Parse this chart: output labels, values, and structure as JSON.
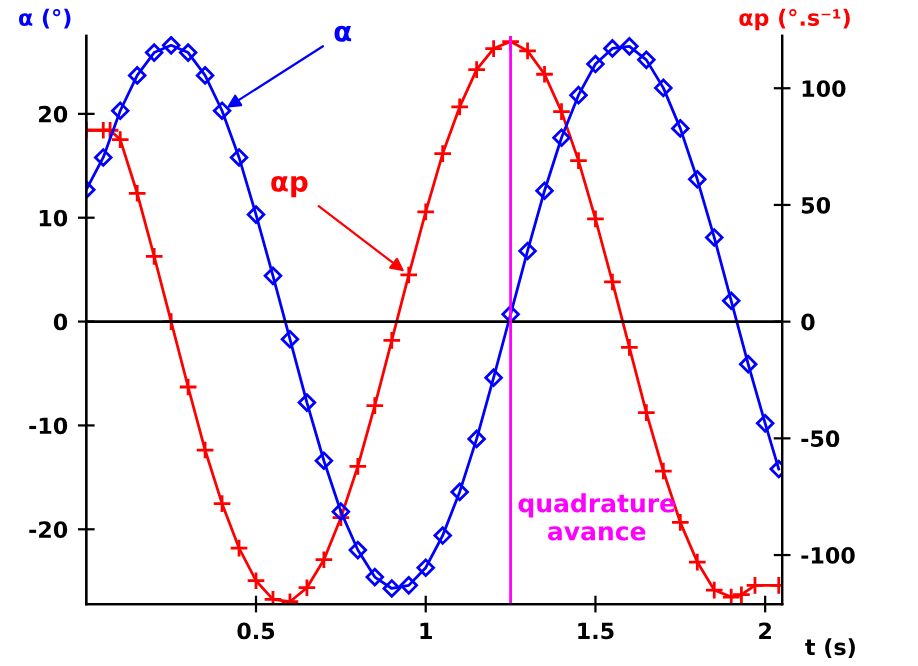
{
  "chart_data": {
    "type": "line",
    "xlabel": "t (s)",
    "ylabel": "α (°)",
    "y2label": "αp (°.s⁻¹)",
    "xlim": [
      0,
      2.05
    ],
    "xticks": [
      0.5,
      1,
      1.5,
      2
    ],
    "ylim": [
      -27.2,
      27.5
    ],
    "yticks": [
      -20,
      -10,
      0,
      10,
      20
    ],
    "y2lim": [
      -121,
      122.4
    ],
    "y2ticks": [
      -100,
      -50,
      0,
      50,
      100
    ],
    "grid": false,
    "legend": false,
    "line_style": "solid",
    "series": [
      {
        "name": null,
        "color": "#0000ff",
        "marker": "diamond",
        "x": [
          0,
          0.05,
          0.1,
          0.15,
          0.2,
          0.25,
          0.3,
          0.35,
          0.4,
          0.45,
          0.5,
          0.55,
          0.6,
          0.65,
          0.7,
          0.75,
          0.8,
          0.85,
          0.9,
          0.95,
          1.0,
          1.05,
          1.1,
          1.15,
          1.2,
          1.25,
          1.3,
          1.35,
          1.4,
          1.45,
          1.5,
          1.55,
          1.6,
          1.65,
          1.7,
          1.75,
          1.8,
          1.85,
          1.9,
          1.95,
          2.0,
          2.04
        ],
        "values": [
          12.7,
          15.8,
          20.3,
          23.7,
          25.9,
          26.6,
          25.9,
          23.7,
          20.3,
          15.8,
          10.3,
          4.4,
          -1.7,
          -7.8,
          -13.4,
          -18.3,
          -22.0,
          -24.6,
          -25.7,
          -25.4,
          -23.7,
          -20.6,
          -16.4,
          -11.3,
          -5.4,
          0.7,
          6.8,
          12.6,
          17.7,
          21.8,
          24.8,
          26.3,
          26.5,
          25.2,
          22.5,
          18.6,
          13.7,
          8.1,
          2.0,
          -4.1,
          -9.8,
          -14.2
        ]
      },
      {
        "name": null,
        "color": "#ff0000",
        "marker": "cross",
        "axis": "y2",
        "x": [
          0,
          0.05,
          0.07,
          0.1,
          0.15,
          0.2,
          0.25,
          0.3,
          0.35,
          0.4,
          0.45,
          0.5,
          0.55,
          0.6,
          0.65,
          0.7,
          0.75,
          0.8,
          0.85,
          0.9,
          0.95,
          1.0,
          1.05,
          1.1,
          1.15,
          1.2,
          1.25,
          1.3,
          1.35,
          1.4,
          1.45,
          1.5,
          1.55,
          1.6,
          1.65,
          1.7,
          1.75,
          1.8,
          1.85,
          1.9,
          1.93,
          1.97,
          2.04
        ],
        "values": [
          82,
          82,
          82,
          78,
          55,
          28,
          0,
          -28,
          -55,
          -78,
          -97,
          -111,
          -119,
          -120,
          -114,
          -102,
          -84,
          -62,
          -36,
          -8,
          20,
          47,
          72,
          92,
          108,
          117,
          120,
          116,
          106,
          90,
          69,
          44,
          17,
          -11,
          -39,
          -64,
          -86,
          -103,
          -115,
          -118,
          -117,
          -113,
          -113
        ]
      }
    ],
    "ref_lines": [
      {
        "axis": "y",
        "value": 0,
        "label": null,
        "color": "#000000"
      },
      {
        "axis": "x",
        "value": 1.25,
        "label": "quadrature\navance",
        "color": "#ff00ff"
      }
    ],
    "annotations": [
      {
        "text": "α",
        "x": 0.4,
        "y": 20.3
      },
      {
        "text": "αp",
        "x": 0.95,
        "y": 4.5
      }
    ]
  }
}
